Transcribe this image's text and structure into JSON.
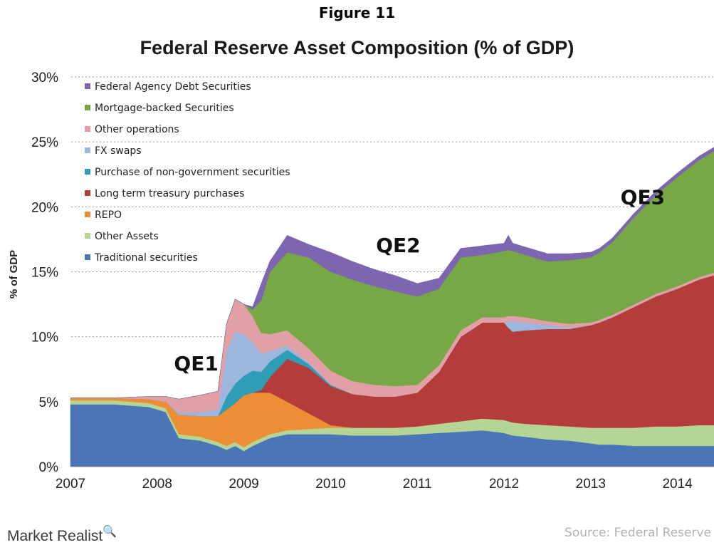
{
  "figure_label": "Figure 11",
  "footer": {
    "brand": "Market Realist",
    "brand_mark": "🔍",
    "source": "Source: Federal Reserve"
  },
  "chart_data": {
    "type": "area",
    "stacked": true,
    "title": "Federal Reserve Asset Composition (% of GDP)",
    "ylabel": "% of GDP",
    "xlabel": "",
    "ylim": [
      0,
      30
    ],
    "yticks": [
      0,
      5,
      10,
      15,
      20,
      25,
      30
    ],
    "ytick_labels": [
      "0%",
      "5%",
      "10%",
      "15%",
      "20%",
      "25%",
      "30%"
    ],
    "xlim": [
      2007.0,
      2014.75
    ],
    "xticks": [
      2007,
      2008,
      2009,
      2010,
      2011,
      2012,
      2013,
      2014
    ],
    "xtick_labels": [
      "2007",
      "2008",
      "2009",
      "2010",
      "2011",
      "2012",
      "2013",
      "2014"
    ],
    "grid": "horizontal dashed",
    "legend_position": "top-left",
    "x": [
      2007.0,
      2007.5,
      2007.9,
      2008.1,
      2008.25,
      2008.5,
      2008.7,
      2008.8,
      2008.9,
      2009.0,
      2009.1,
      2009.2,
      2009.3,
      2009.5,
      2009.75,
      2010.0,
      2010.25,
      2010.5,
      2010.75,
      2011.0,
      2011.25,
      2011.5,
      2011.75,
      2012.0,
      2012.05,
      2012.1,
      2012.25,
      2012.5,
      2012.75,
      2013.0,
      2013.1,
      2013.25,
      2013.5,
      2013.75,
      2014.0,
      2014.25,
      2014.5,
      2014.75
    ],
    "series": [
      {
        "name": "Traditional securities",
        "color": "#4a76b8",
        "values": [
          4.8,
          4.8,
          4.6,
          4.2,
          2.2,
          2.0,
          1.6,
          1.3,
          1.6,
          1.2,
          1.6,
          1.9,
          2.2,
          2.5,
          2.5,
          2.5,
          2.4,
          2.4,
          2.4,
          2.5,
          2.6,
          2.7,
          2.8,
          2.6,
          2.5,
          2.4,
          2.3,
          2.1,
          2.0,
          1.8,
          1.7,
          1.7,
          1.6,
          1.6,
          1.6,
          1.6,
          1.6,
          1.6
        ]
      },
      {
        "name": "Other Assets",
        "color": "#b5d596",
        "values": [
          0.3,
          0.3,
          0.3,
          0.3,
          0.3,
          0.3,
          0.3,
          0.3,
          0.3,
          0.3,
          0.3,
          0.3,
          0.3,
          0.3,
          0.4,
          0.5,
          0.6,
          0.6,
          0.6,
          0.6,
          0.7,
          0.8,
          0.9,
          1.0,
          1.0,
          1.0,
          1.0,
          1.1,
          1.1,
          1.2,
          1.3,
          1.3,
          1.4,
          1.5,
          1.5,
          1.6,
          1.6,
          1.6
        ]
      },
      {
        "name": "REPO",
        "color": "#ec8e35",
        "values": [
          0.2,
          0.2,
          0.3,
          0.5,
          1.5,
          1.6,
          2.0,
          2.8,
          3.0,
          4.0,
          3.8,
          3.5,
          3.2,
          2.2,
          1.2,
          0.2,
          0.0,
          0.0,
          0.0,
          0.0,
          0.0,
          0.0,
          0.0,
          0.0,
          0.0,
          0.0,
          0.0,
          0.0,
          0.0,
          0.0,
          0.0,
          0.0,
          0.0,
          0.0,
          0.0,
          0.0,
          0.0,
          0.0
        ]
      },
      {
        "name": "Long term treasury purchases",
        "color": "#b43c3a",
        "values": [
          0.0,
          0.0,
          0.0,
          0.0,
          0.0,
          0.0,
          0.0,
          0.0,
          0.0,
          0.0,
          0.0,
          0.2,
          1.2,
          3.3,
          3.5,
          3.0,
          2.6,
          2.4,
          2.4,
          2.6,
          4.0,
          6.5,
          7.4,
          7.5,
          7.2,
          7.0,
          7.2,
          7.4,
          7.5,
          7.9,
          8.1,
          8.5,
          9.3,
          10.0,
          10.6,
          11.2,
          11.7,
          12.1
        ]
      },
      {
        "name": "Purchase of non-government securities",
        "color": "#2e9db5",
        "values": [
          0.0,
          0.0,
          0.0,
          0.0,
          0.0,
          0.0,
          0.0,
          1.0,
          1.5,
          1.5,
          1.7,
          1.4,
          1.2,
          0.7,
          0.3,
          0.1,
          0.0,
          0.0,
          0.0,
          0.0,
          0.0,
          0.0,
          0.0,
          0.0,
          0.0,
          0.0,
          0.0,
          0.0,
          0.0,
          0.0,
          0.0,
          0.0,
          0.0,
          0.0,
          0.0,
          0.0,
          0.0,
          0.0
        ]
      },
      {
        "name": "FX swaps",
        "color": "#9db6de",
        "values": [
          0.0,
          0.0,
          0.0,
          0.0,
          0.2,
          0.3,
          0.5,
          3.5,
          4.0,
          3.2,
          2.2,
          1.4,
          0.8,
          0.3,
          0.1,
          0.0,
          0.0,
          0.0,
          0.0,
          0.0,
          0.0,
          0.0,
          0.0,
          0.0,
          0.5,
          0.8,
          0.6,
          0.3,
          0.1,
          0.0,
          0.0,
          0.0,
          0.0,
          0.0,
          0.0,
          0.0,
          0.0,
          0.0
        ]
      },
      {
        "name": "Other operations",
        "color": "#e0a0a6",
        "values": [
          0.0,
          0.0,
          0.2,
          0.4,
          1.0,
          1.3,
          1.4,
          2.1,
          2.5,
          2.3,
          2.0,
          1.6,
          1.3,
          1.2,
          1.1,
          1.1,
          1.0,
          0.9,
          0.8,
          0.6,
          0.5,
          0.5,
          0.4,
          0.4,
          0.4,
          0.4,
          0.4,
          0.3,
          0.3,
          0.2,
          0.2,
          0.2,
          0.2,
          0.2,
          0.2,
          0.2,
          0.2,
          0.2
        ]
      },
      {
        "name": "Mortgage-backed Securities",
        "color": "#78a845",
        "values": [
          0.0,
          0.0,
          0.0,
          0.0,
          0.0,
          0.0,
          0.0,
          0.0,
          0.0,
          0.0,
          0.5,
          2.5,
          4.8,
          6.0,
          7.0,
          7.6,
          7.8,
          7.6,
          7.3,
          6.8,
          5.9,
          5.6,
          4.8,
          5.1,
          5.1,
          5.0,
          4.8,
          4.6,
          4.9,
          5.0,
          5.2,
          5.6,
          6.7,
          7.6,
          8.4,
          9.0,
          9.5,
          10.0
        ]
      },
      {
        "name": "Federal Agency Debt Securities",
        "color": "#7d65b0",
        "values": [
          0.0,
          0.0,
          0.0,
          0.0,
          0.0,
          0.0,
          0.0,
          0.0,
          0.0,
          0.0,
          0.2,
          1.3,
          0.8,
          1.3,
          1.0,
          1.5,
          1.4,
          1.3,
          1.2,
          1.0,
          0.8,
          0.7,
          0.7,
          0.6,
          1.1,
          0.6,
          0.6,
          0.6,
          0.5,
          0.4,
          0.3,
          0.3,
          0.3,
          0.3,
          0.3,
          0.3,
          0.3,
          0.3
        ]
      }
    ],
    "legend_order": [
      "Federal Agency Debt Securities",
      "Mortgage-backed Securities",
      "Other operations",
      "FX swaps",
      "Purchase of non-government securities",
      "Long term treasury purchases",
      "REPO",
      "Other Assets",
      "Traditional securities"
    ],
    "annotations": [
      {
        "text": "QE1",
        "x": 2008.45,
        "y": 7.4
      },
      {
        "text": "QE2",
        "x": 2010.78,
        "y": 16.5
      },
      {
        "text": "QE3",
        "x": 2013.6,
        "y": 20.2
      }
    ]
  }
}
